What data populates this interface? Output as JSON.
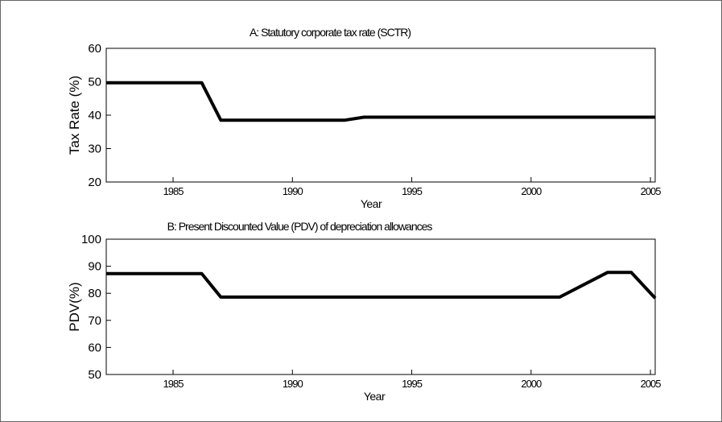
{
  "chart_data": [
    {
      "type": "line",
      "title": "A: Statutory corporate tax rate (SCTR)",
      "xlabel": "Year",
      "ylabel": "Tax Rate (%)",
      "xlim": [
        1982.2,
        2005.2
      ],
      "ylim": [
        20,
        60
      ],
      "xticks": [
        1985,
        1990,
        1995,
        2000,
        2005
      ],
      "yticks": [
        20,
        30,
        40,
        50,
        60
      ],
      "x": [
        1982.2,
        1986.2,
        1987,
        1992.2,
        1993,
        2005.2
      ],
      "series": [
        {
          "values": [
            49.7,
            49.7,
            38.5,
            38.5,
            39.4,
            39.4
          ]
        }
      ]
    },
    {
      "type": "line",
      "title": "B: Present Discounted Value (PDV) of depreciation allowances",
      "xlabel": "Year",
      "ylabel": "PDV(%)",
      "xlim": [
        1982.2,
        2005.2
      ],
      "ylim": [
        50,
        100
      ],
      "xticks": [
        1985,
        1990,
        1995,
        2000,
        2005
      ],
      "yticks": [
        50,
        60,
        70,
        80,
        90,
        100
      ],
      "x": [
        1982.2,
        1986.2,
        1987,
        2001.2,
        2003.2,
        2004.2,
        2005.2
      ],
      "series": [
        {
          "values": [
            87.3,
            87.3,
            78.6,
            78.6,
            87.7,
            87.7,
            78.2
          ]
        }
      ]
    }
  ]
}
